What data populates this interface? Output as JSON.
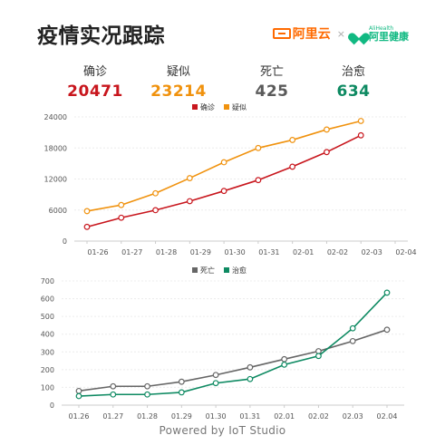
{
  "header": {
    "title": "疫情实况跟踪",
    "brand_left": "阿里云",
    "brand_separator": "×",
    "brand_right_en": "AliHealth",
    "brand_right_cn": "阿里健康"
  },
  "stats": [
    {
      "label": "确诊",
      "value": "20471",
      "color": "#c8161d"
    },
    {
      "label": "疑似",
      "value": "23214",
      "color": "#f0920e"
    },
    {
      "label": "死亡",
      "value": "425",
      "color": "#5a5a5a"
    },
    {
      "label": "治愈",
      "value": "634",
      "color": "#0e8a62"
    }
  ],
  "footer": "Powered by IoT Studio",
  "chart_data": [
    {
      "type": "line",
      "x": [
        "01-26",
        "01-27",
        "01-28",
        "01-29",
        "01-30",
        "01-31",
        "02-01",
        "02-02",
        "02-03",
        "02-04"
      ],
      "ylim": [
        0,
        24000
      ],
      "yticks": [
        0,
        6000,
        12000,
        18000,
        24000
      ],
      "grid": true,
      "legend_position": "top-center",
      "series": [
        {
          "name": "确诊",
          "color": "#c8161d",
          "values": [
            2744,
            4515,
            5974,
            7711,
            9692,
            11791,
            14380,
            17205,
            20438,
            20471
          ]
        },
        {
          "name": "疑似",
          "color": "#f0920e",
          "values": [
            5794,
            6973,
            9239,
            12167,
            15238,
            17988,
            19544,
            21558,
            23214,
            23214
          ]
        }
      ]
    },
    {
      "type": "line",
      "x": [
        "01.26",
        "01.27",
        "01.28",
        "01.29",
        "01.30",
        "01.31",
        "02.01",
        "02.02",
        "02.03",
        "02.04"
      ],
      "ylim": [
        0,
        700
      ],
      "yticks": [
        0,
        100,
        200,
        300,
        400,
        500,
        600,
        700
      ],
      "grid": true,
      "legend_position": "top-center",
      "series": [
        {
          "name": "死亡",
          "color": "#666666",
          "values": [
            80,
            106,
            106,
            132,
            170,
            213,
            259,
            304,
            361,
            425
          ]
        },
        {
          "name": "治愈",
          "color": "#0e8a62",
          "values": [
            51,
            60,
            60,
            72,
            124,
            147,
            228,
            277,
            433,
            634
          ]
        }
      ]
    }
  ]
}
